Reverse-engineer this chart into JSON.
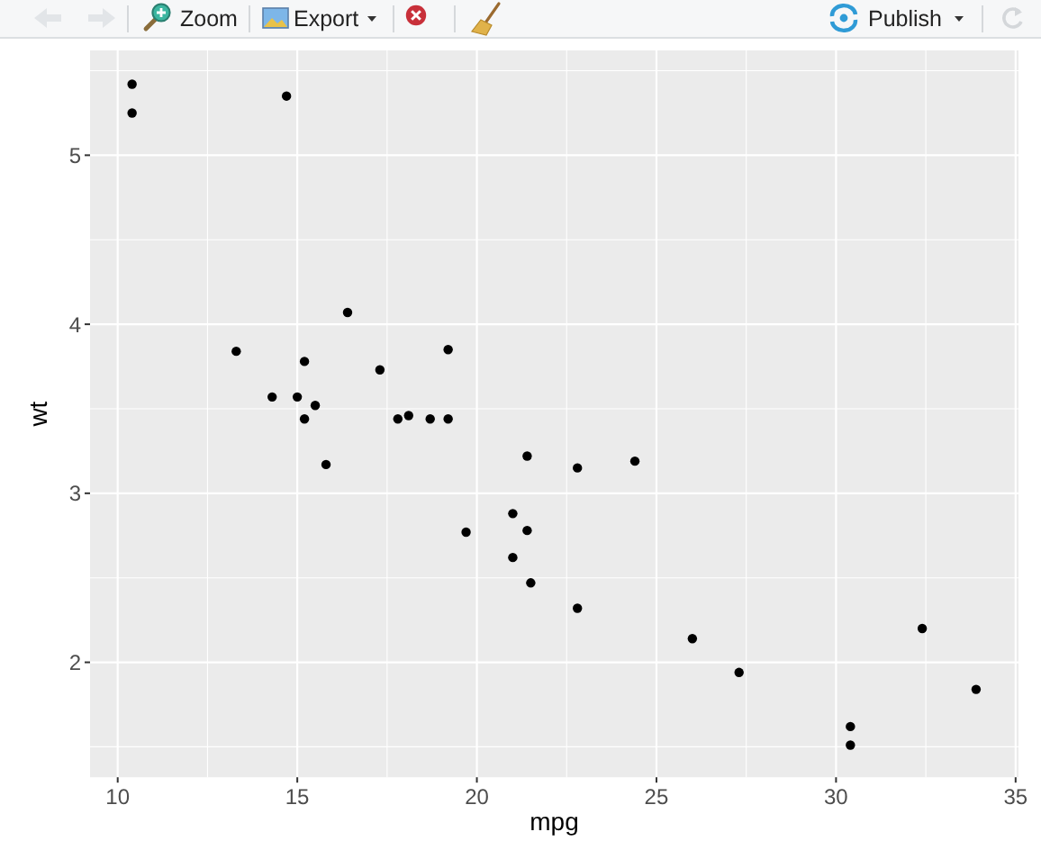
{
  "chart_data": {
    "type": "scatter",
    "xlabel": "mpg",
    "ylabel": "wt",
    "annotations": [
      "Zoom",
      "Export",
      "Publish"
    ],
    "x": [
      21.0,
      21.0,
      22.8,
      21.4,
      18.7,
      18.1,
      14.3,
      24.4,
      22.8,
      19.2,
      17.8,
      16.4,
      17.3,
      15.2,
      10.4,
      10.4,
      14.7,
      32.4,
      30.4,
      33.9,
      21.5,
      15.5,
      15.2,
      13.3,
      19.2,
      27.3,
      26.0,
      30.4,
      15.8,
      19.7,
      15.0,
      21.4
    ],
    "values": [
      2.62,
      2.88,
      2.32,
      3.22,
      3.44,
      3.46,
      3.57,
      3.19,
      3.15,
      3.44,
      3.44,
      4.07,
      3.73,
      3.78,
      5.25,
      5.42,
      5.35,
      2.2,
      1.62,
      1.84,
      2.47,
      3.52,
      3.44,
      3.84,
      3.85,
      1.94,
      2.14,
      1.51,
      3.17,
      2.77,
      3.57,
      2.78
    ],
    "color": "#000000",
    "marker": "circle",
    "xlim": [
      9.23,
      35.08
    ],
    "xticks": [
      10,
      15,
      20,
      25,
      30,
      35
    ],
    "ylim": [
      1.32,
      5.62
    ],
    "yticks": [
      2,
      3,
      4,
      5
    ],
    "grid": true
  }
}
